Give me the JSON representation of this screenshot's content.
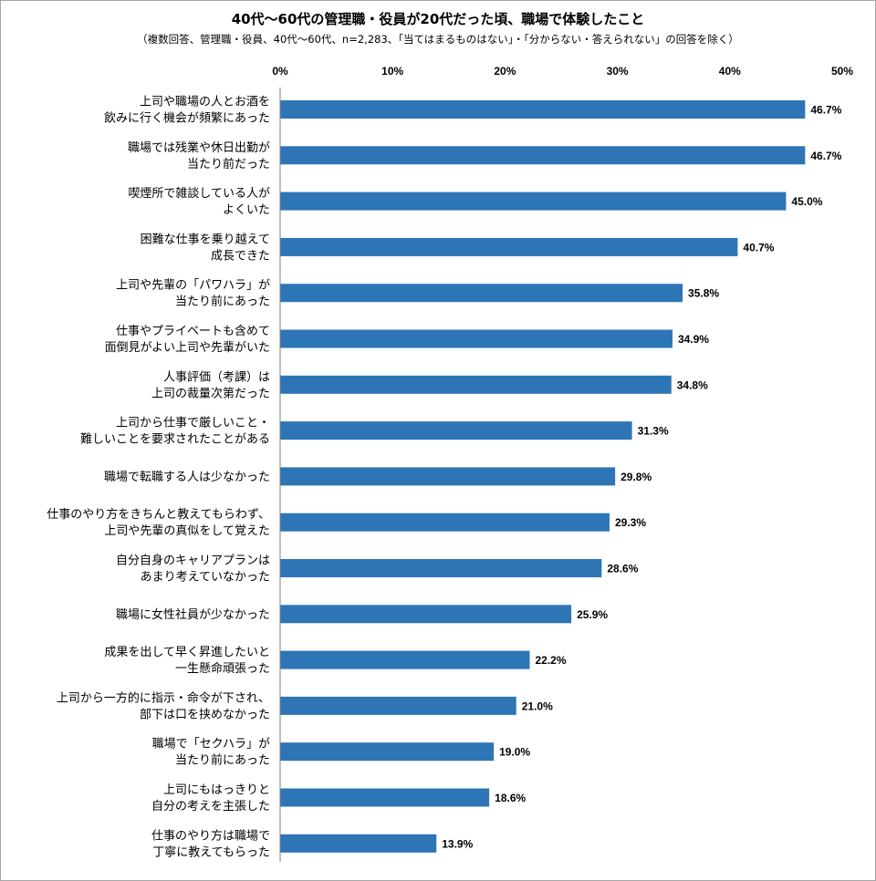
{
  "chart_data": {
    "type": "bar",
    "orientation": "horizontal",
    "title": "40代～60代の管理職・役員が20代だった頃、職場で体験したこと",
    "subtitle": "（複数回答、管理職・役員、40代～60代、n=2,283、「当てはまるものはない」・「分からない・答えられない」の回答を除く）",
    "xlim": [
      0,
      50
    ],
    "ticks": [
      0,
      10,
      20,
      30,
      40,
      50
    ],
    "tick_labels": [
      "0%",
      "10%",
      "20%",
      "30%",
      "40%",
      "50%"
    ],
    "legend": "none",
    "grid": false,
    "bar_color": "#2e75b6",
    "categories": [
      [
        "上司や職場の人とお酒を",
        "飲みに行く機会が頻繁にあった"
      ],
      [
        "職場では残業や休日出勤が",
        "当たり前だった"
      ],
      [
        "喫煙所で雑談している人が",
        "よくいた"
      ],
      [
        "困難な仕事を乗り越えて",
        "成長できた"
      ],
      [
        "上司や先輩の「パワハラ」が",
        "当たり前にあった"
      ],
      [
        "仕事やプライベートも含めて",
        "面倒見がよい上司や先輩がいた"
      ],
      [
        "人事評価（考課）は",
        "上司の裁量次第だった"
      ],
      [
        "上司から仕事で厳しいこと・",
        "難しいことを要求されたことがある"
      ],
      [
        "職場で転職する人は少なかった"
      ],
      [
        "仕事のやり方をきちんと教えてもらわず、",
        "上司や先輩の真似をして覚えた"
      ],
      [
        "自分自身のキャリアプランは",
        "あまり考えていなかった"
      ],
      [
        "職場に女性社員が少なかった"
      ],
      [
        "成果を出して早く昇進したいと",
        "一生懸命頑張った"
      ],
      [
        "上司から一方的に指示・命令が下され、",
        "部下は口を挟めなかった"
      ],
      [
        "職場で「セクハラ」が",
        "当たり前にあった"
      ],
      [
        "上司にもはっきりと",
        "自分の考えを主張した"
      ],
      [
        "仕事のやり方は職場で",
        "丁寧に教えてもらった"
      ]
    ],
    "values": [
      46.7,
      46.7,
      45.0,
      40.7,
      35.8,
      34.9,
      34.8,
      31.3,
      29.8,
      29.3,
      28.6,
      25.9,
      22.2,
      21.0,
      19.0,
      18.6,
      13.9
    ],
    "value_labels": [
      "46.7%",
      "46.7%",
      "45.0%",
      "40.7%",
      "35.8%",
      "34.9%",
      "34.8%",
      "31.3%",
      "29.8%",
      "29.3%",
      "28.6%",
      "25.9%",
      "22.2%",
      "21.0%",
      "19.0%",
      "18.6%",
      "13.9%"
    ]
  }
}
